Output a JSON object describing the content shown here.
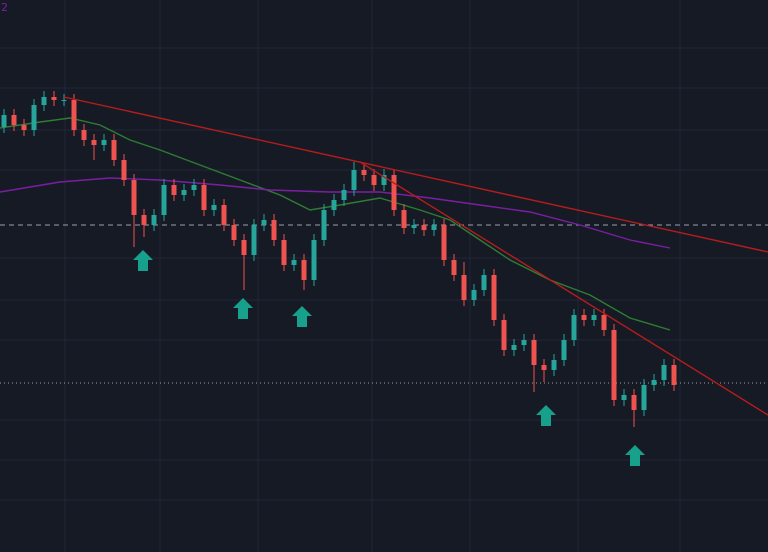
{
  "chart_data": {
    "type": "candlestick",
    "label": "2",
    "xlim": [
      -0.4,
      76.4
    ],
    "ylim": [
      0,
      552
    ],
    "up_color": "#26a69a",
    "down_color": "#ef5350",
    "ohlc": [
      [
        425,
        443,
        419,
        437
      ],
      [
        437,
        443,
        421,
        427
      ],
      [
        427,
        433,
        416,
        422
      ],
      [
        422,
        453,
        416,
        447
      ],
      [
        447,
        461,
        441,
        455
      ],
      [
        455,
        461,
        446,
        452
      ],
      [
        452,
        458,
        446,
        452
      ],
      [
        452,
        458,
        416,
        422
      ],
      [
        422,
        428,
        406,
        412
      ],
      [
        412,
        418,
        392,
        407
      ],
      [
        407,
        418,
        401,
        412
      ],
      [
        412,
        418,
        386,
        392
      ],
      [
        392,
        398,
        366,
        372
      ],
      [
        372,
        378,
        305,
        337
      ],
      [
        337,
        343,
        315,
        327
      ],
      [
        327,
        343,
        321,
        337
      ],
      [
        337,
        373,
        331,
        367
      ],
      [
        367,
        373,
        351,
        357
      ],
      [
        357,
        368,
        351,
        362
      ],
      [
        362,
        373,
        356,
        367
      ],
      [
        367,
        373,
        336,
        342
      ],
      [
        342,
        353,
        336,
        347
      ],
      [
        347,
        353,
        321,
        327
      ],
      [
        327,
        333,
        306,
        312
      ],
      [
        312,
        318,
        262,
        297
      ],
      [
        297,
        333,
        291,
        327
      ],
      [
        327,
        338,
        321,
        332
      ],
      [
        332,
        338,
        306,
        312
      ],
      [
        312,
        318,
        281,
        287
      ],
      [
        287,
        298,
        281,
        292
      ],
      [
        292,
        298,
        262,
        272
      ],
      [
        272,
        318,
        266,
        312
      ],
      [
        312,
        348,
        306,
        342
      ],
      [
        342,
        358,
        336,
        352
      ],
      [
        352,
        368,
        346,
        362
      ],
      [
        362,
        390,
        356,
        382
      ],
      [
        382,
        388,
        371,
        377
      ],
      [
        377,
        383,
        361,
        367
      ],
      [
        367,
        383,
        361,
        377
      ],
      [
        377,
        383,
        336,
        342
      ],
      [
        342,
        348,
        318,
        324
      ],
      [
        324,
        333,
        318,
        327
      ],
      [
        327,
        333,
        316,
        322
      ],
      [
        322,
        333,
        316,
        327
      ],
      [
        327,
        333,
        286,
        292
      ],
      [
        292,
        298,
        271,
        277
      ],
      [
        277,
        290,
        246,
        252
      ],
      [
        252,
        268,
        246,
        262
      ],
      [
        262,
        283,
        256,
        277
      ],
      [
        277,
        283,
        226,
        232
      ],
      [
        232,
        238,
        196,
        202
      ],
      [
        202,
        213,
        196,
        207
      ],
      [
        207,
        218,
        201,
        212
      ],
      [
        212,
        218,
        160,
        187
      ],
      [
        187,
        193,
        170,
        182
      ],
      [
        182,
        198,
        176,
        192
      ],
      [
        192,
        218,
        186,
        212
      ],
      [
        212,
        243,
        206,
        237
      ],
      [
        237,
        243,
        226,
        232
      ],
      [
        232,
        243,
        226,
        237
      ],
      [
        237,
        243,
        216,
        222
      ],
      [
        222,
        228,
        146,
        152
      ],
      [
        152,
        163,
        146,
        157
      ],
      [
        157,
        163,
        125,
        142
      ],
      [
        142,
        173,
        136,
        167
      ],
      [
        167,
        178,
        161,
        172
      ],
      [
        172,
        193,
        166,
        187
      ],
      [
        187,
        193,
        161,
        167
      ]
    ],
    "lines": [
      {
        "color": "#2e7d32",
        "x": [
          -0.4,
          3.6,
          6.6,
          9.6,
          12.6,
          15.6,
          19.6,
          23.6,
          27.6,
          30.6,
          33.6,
          37.6,
          41.6,
          44.6,
          47.6,
          50.6,
          54.6,
          58.6,
          62.6,
          66.6
        ],
        "values": [
          424,
          430,
          434,
          427,
          412,
          402,
          387,
          372,
          357,
          342,
          347,
          354,
          342,
          332,
          312,
          292,
          272,
          257,
          234,
          222
        ]
      },
      {
        "color": "#7b1fa2",
        "x": [
          -0.4,
          5.6,
          10.6,
          15.6,
          21.6,
          26.6,
          32.6,
          37.6,
          42.6,
          47.6,
          52.6,
          57.6,
          62.6,
          66.6
        ],
        "values": [
          360,
          370,
          374,
          372,
          367,
          362,
          360,
          360,
          354,
          347,
          340,
          327,
          312,
          304
        ]
      },
      {
        "color": "#b71c1c",
        "x": [
          6,
          76.4
        ],
        "values": [
          455,
          300
        ]
      },
      {
        "color": "#b71c1c",
        "x": [
          35.6,
          76.4
        ],
        "values": [
          390,
          137
        ]
      }
    ],
    "levels": [
      {
        "value": 327,
        "style": "dashed"
      },
      {
        "value": 169,
        "style": "dotted"
      }
    ],
    "arrows": {
      "color": "#17a08c",
      "x": [
        13.9,
        23.9,
        29.8,
        54.2,
        63.1
      ],
      "values": [
        302,
        254,
        246,
        147,
        107
      ]
    }
  }
}
